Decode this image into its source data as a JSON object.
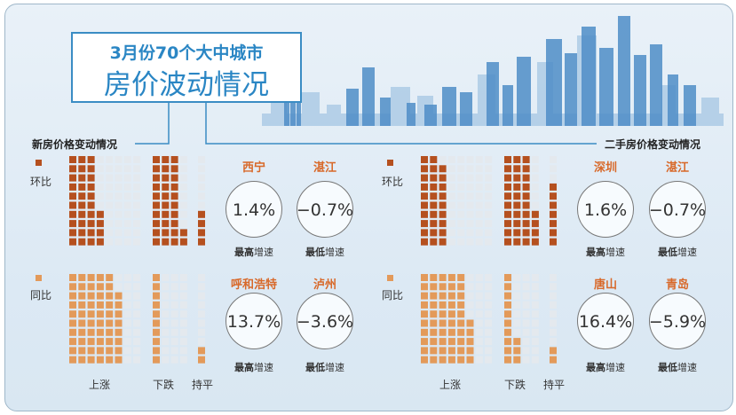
{
  "title": {
    "line1": "3月份70个大中城市",
    "line2": "房价波动情况"
  },
  "sections": {
    "new_home": "新房价格变动情况",
    "second_hand": "二手房价格变动情况"
  },
  "row_labels": {
    "mom": "环比",
    "yoy": "同比"
  },
  "col_labels": {
    "up": "上涨",
    "down": "下跌",
    "flat": "持平"
  },
  "stat_labels": {
    "highest_prefix": "最高",
    "lowest_prefix": "最低",
    "suffix": "增速"
  },
  "colors": {
    "mom": "#b5501f",
    "yoy": "#e39a5a",
    "empty": "#e4e9ee"
  },
  "chart_data": [
    {
      "type": "table",
      "market": "新房",
      "period": "环比",
      "up": 34,
      "down": 32,
      "flat": 4,
      "highest": {
        "city": "西宁",
        "value": "1.4%"
      },
      "lowest": {
        "city": "湛江",
        "value": "−0.7%"
      }
    },
    {
      "type": "table",
      "market": "新房",
      "period": "同比",
      "up": 58,
      "down": 10,
      "flat": 2,
      "highest": {
        "city": "呼和浩特",
        "value": "13.7%"
      },
      "lowest": {
        "city": "泸州",
        "value": "−3.6%"
      }
    },
    {
      "type": "table",
      "market": "二手房",
      "period": "环比",
      "up": 29,
      "down": 34,
      "flat": 7,
      "highest": {
        "city": "深圳",
        "value": "1.6%"
      },
      "lowest": {
        "city": "湛江",
        "value": "−0.7%"
      }
    },
    {
      "type": "table",
      "market": "二手房",
      "period": "同比",
      "up": 55,
      "down": 13,
      "flat": 2,
      "highest": {
        "city": "唐山",
        "value": "16.4%"
      },
      "lowest": {
        "city": "青岛",
        "value": "−5.9%"
      }
    }
  ]
}
